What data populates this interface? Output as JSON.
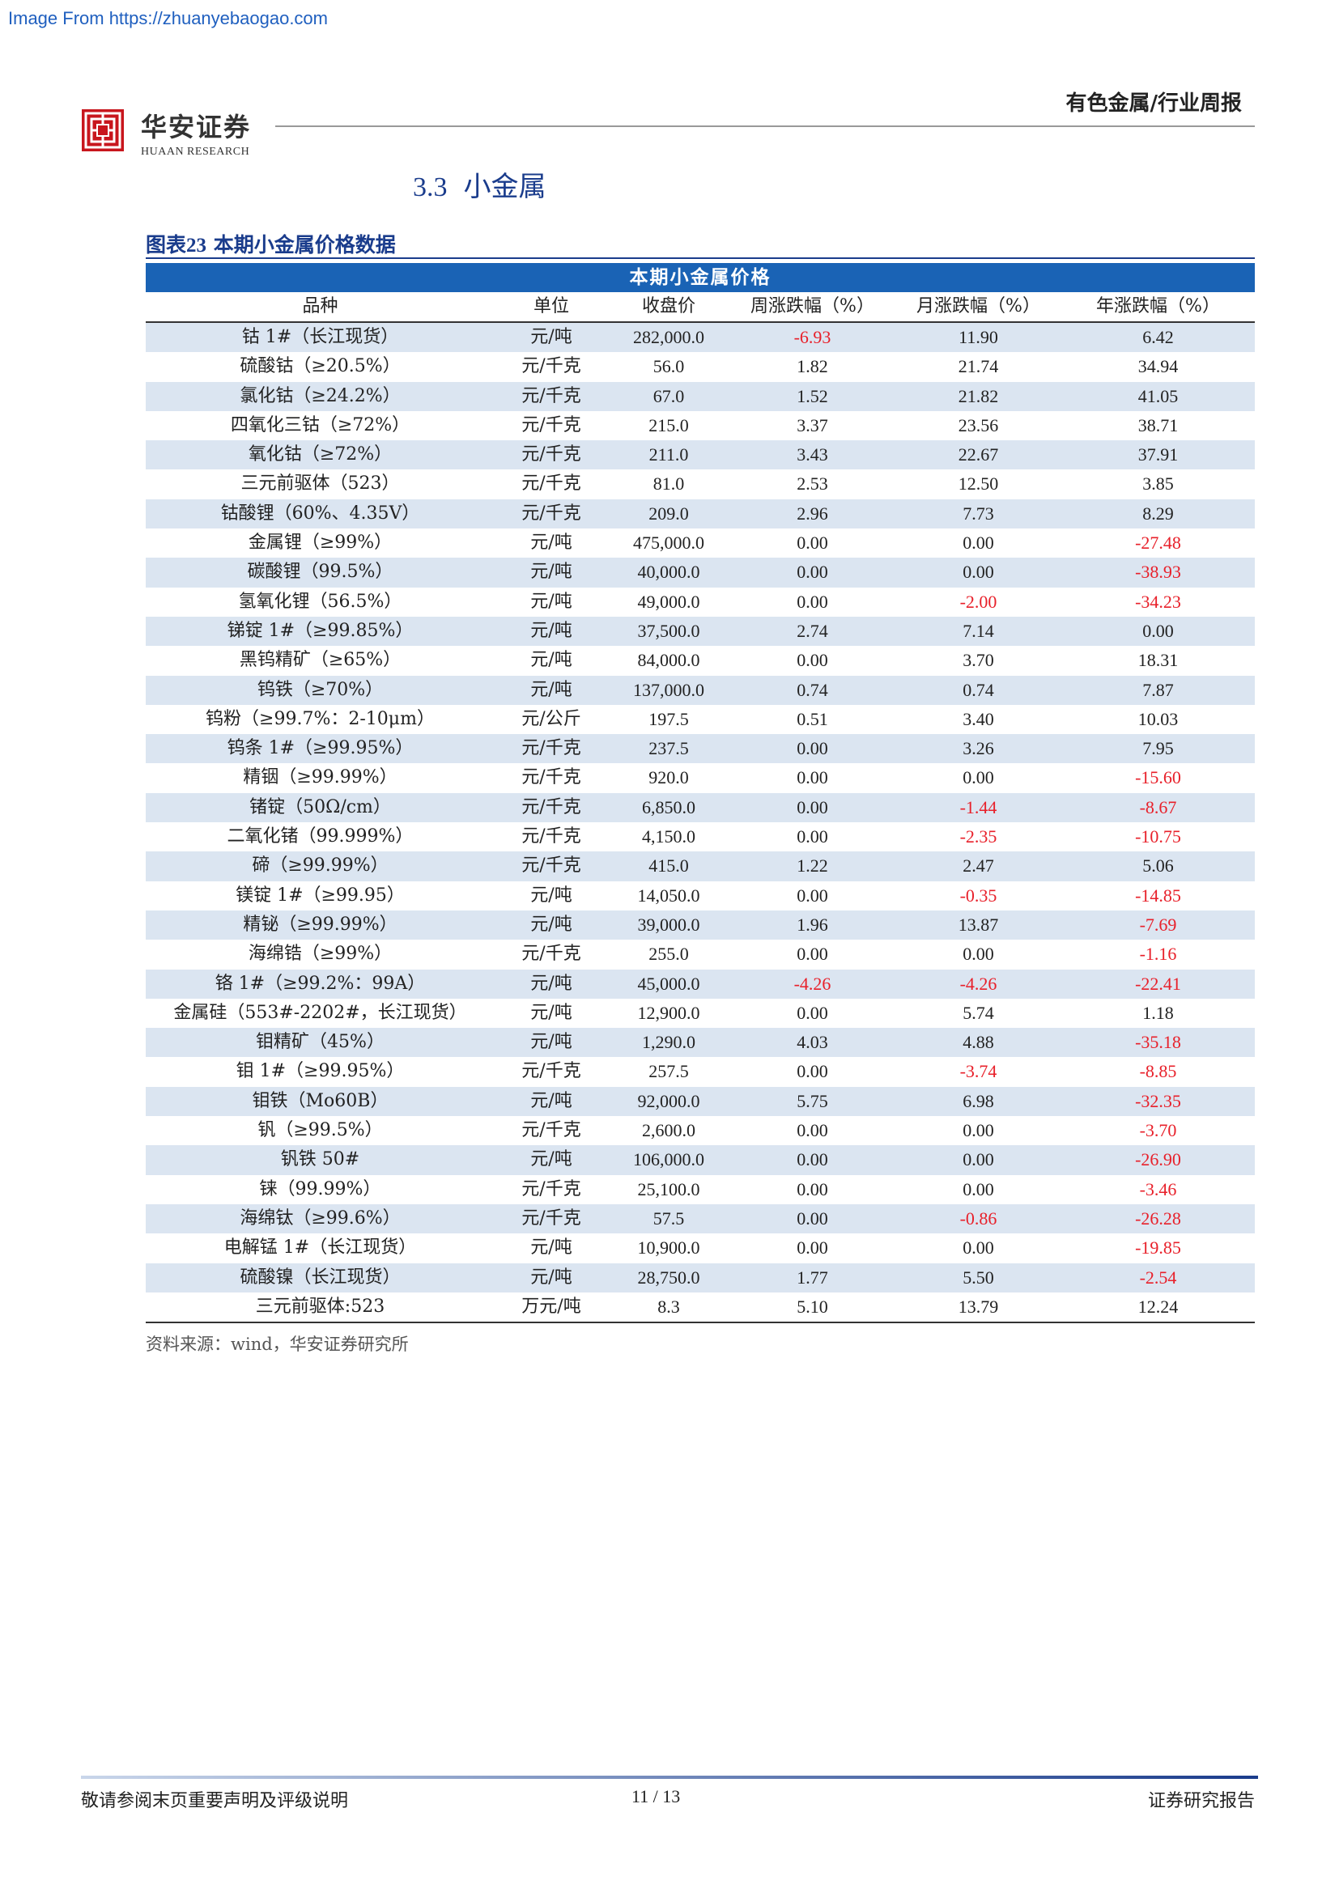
{
  "watermark": "Image From https://zhuanyebaogao.com",
  "brand": {
    "name_cn": "华安证券",
    "name_en": "HUAAN RESEARCH",
    "logo_icon": "huaan-seal-icon",
    "logo_color": "#c8161d"
  },
  "header": {
    "category": "有色金属/行业周报"
  },
  "section": {
    "number": "3.3",
    "title": "小金属"
  },
  "figure": {
    "label": "图表",
    "number": "23",
    "title": "本期小金属价格数据"
  },
  "table": {
    "banner": "本期小金属价格",
    "columns": [
      "品种",
      "单位",
      "收盘价",
      "周涨跌幅（%）",
      "月涨跌幅（%）",
      "年涨跌幅（%）"
    ],
    "rows": [
      [
        "钴 1#（长江现货）",
        "元/吨",
        "282,000.0",
        "-6.93",
        "11.90",
        "6.42"
      ],
      [
        "硫酸钴（≥20.5%）",
        "元/千克",
        "56.0",
        "1.82",
        "21.74",
        "34.94"
      ],
      [
        "氯化钴（≥24.2%）",
        "元/千克",
        "67.0",
        "1.52",
        "21.82",
        "41.05"
      ],
      [
        "四氧化三钴（≥72%）",
        "元/千克",
        "215.0",
        "3.37",
        "23.56",
        "38.71"
      ],
      [
        "氧化钴（≥72%）",
        "元/千克",
        "211.0",
        "3.43",
        "22.67",
        "37.91"
      ],
      [
        "三元前驱体（523）",
        "元/千克",
        "81.0",
        "2.53",
        "12.50",
        "3.85"
      ],
      [
        "钴酸锂（60%、4.35V）",
        "元/千克",
        "209.0",
        "2.96",
        "7.73",
        "8.29"
      ],
      [
        "金属锂（≥99%）",
        "元/吨",
        "475,000.0",
        "0.00",
        "0.00",
        "-27.48"
      ],
      [
        "碳酸锂（99.5%）",
        "元/吨",
        "40,000.0",
        "0.00",
        "0.00",
        "-38.93"
      ],
      [
        "氢氧化锂（56.5%）",
        "元/吨",
        "49,000.0",
        "0.00",
        "-2.00",
        "-34.23"
      ],
      [
        "锑锭 1#（≥99.85%）",
        "元/吨",
        "37,500.0",
        "2.74",
        "7.14",
        "0.00"
      ],
      [
        "黑钨精矿（≥65%）",
        "元/吨",
        "84,000.0",
        "0.00",
        "3.70",
        "18.31"
      ],
      [
        "钨铁（≥70%）",
        "元/吨",
        "137,000.0",
        "0.74",
        "0.74",
        "7.87"
      ],
      [
        "钨粉（≥99.7%：2-10μm）",
        "元/公斤",
        "197.5",
        "0.51",
        "3.40",
        "10.03"
      ],
      [
        "钨条 1#（≥99.95%）",
        "元/千克",
        "237.5",
        "0.00",
        "3.26",
        "7.95"
      ],
      [
        "精铟（≥99.99%）",
        "元/千克",
        "920.0",
        "0.00",
        "0.00",
        "-15.60"
      ],
      [
        "锗锭（50Ω/cm）",
        "元/千克",
        "6,850.0",
        "0.00",
        "-1.44",
        "-8.67"
      ],
      [
        "二氧化锗（99.999%）",
        "元/千克",
        "4,150.0",
        "0.00",
        "-2.35",
        "-10.75"
      ],
      [
        "碲（≥99.99%）",
        "元/千克",
        "415.0",
        "1.22",
        "2.47",
        "5.06"
      ],
      [
        "镁锭 1#（≥99.95）",
        "元/吨",
        "14,050.0",
        "0.00",
        "-0.35",
        "-14.85"
      ],
      [
        "精铋（≥99.99%）",
        "元/吨",
        "39,000.0",
        "1.96",
        "13.87",
        "-7.69"
      ],
      [
        "海绵锆（≥99%）",
        "元/千克",
        "255.0",
        "0.00",
        "0.00",
        "-1.16"
      ],
      [
        "铬 1#（≥99.2%：99A）",
        "元/吨",
        "45,000.0",
        "-4.26",
        "-4.26",
        "-22.41"
      ],
      [
        "金属硅（553#-2202#，长江现货）",
        "元/吨",
        "12,900.0",
        "0.00",
        "5.74",
        "1.18"
      ],
      [
        "钼精矿（45%）",
        "元/吨",
        "1,290.0",
        "4.03",
        "4.88",
        "-35.18"
      ],
      [
        "钼 1#（≥99.95%）",
        "元/千克",
        "257.5",
        "0.00",
        "-3.74",
        "-8.85"
      ],
      [
        "钼铁（Mo60B）",
        "元/吨",
        "92,000.0",
        "5.75",
        "6.98",
        "-32.35"
      ],
      [
        "钒（≥99.5%）",
        "元/千克",
        "2,600.0",
        "0.00",
        "0.00",
        "-3.70"
      ],
      [
        "钒铁 50#",
        "元/吨",
        "106,000.0",
        "0.00",
        "0.00",
        "-26.90"
      ],
      [
        "铼（99.99%）",
        "元/千克",
        "25,100.0",
        "0.00",
        "0.00",
        "-3.46"
      ],
      [
        "海绵钛（≥99.6%）",
        "元/千克",
        "57.5",
        "0.00",
        "-0.86",
        "-26.28"
      ],
      [
        "电解锰 1#（长江现货）",
        "元/吨",
        "10,900.0",
        "0.00",
        "0.00",
        "-19.85"
      ],
      [
        "硫酸镍（长江现货）",
        "元/吨",
        "28,750.0",
        "1.77",
        "5.50",
        "-2.54"
      ],
      [
        "三元前驱体:523",
        "万元/吨",
        "8.3",
        "5.10",
        "13.79",
        "12.24"
      ]
    ],
    "colors": {
      "banner": "#1a63b5",
      "shade": "#dbe5f1",
      "negative": "#e8202a"
    }
  },
  "source_note": "资料来源：wind，华安证券研究所",
  "footer": {
    "disclaimer": "敬请参阅末页重要声明及评级说明",
    "page": "11 / 13",
    "report_type": "证券研究报告"
  }
}
